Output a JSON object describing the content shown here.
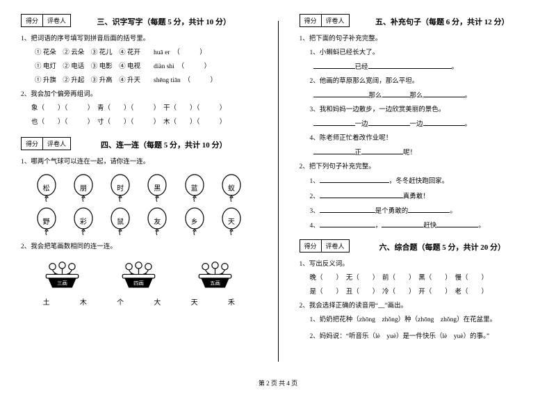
{
  "scorebox": {
    "score": "得分",
    "grader": "评卷人"
  },
  "col1": {
    "sec3": {
      "title": "三、识字写字（每题 5 分，共计 10 分）",
      "q1": "1、把词语的序号填写到拼音后面的括号里。",
      "q1a": "① 花朵　② 云朵　③ 花儿　④ 花开　　huā er　（　　　）",
      "q1b": "① 电灯　② 电话　③ 电影　④ 电视　　diàn shì　（　　　）",
      "q1c": "① 升旗　② 升起　③ 升高　④ 升天　　shēng tiān　（　　　）",
      "q2": "2、我会加个偏旁再组词。",
      "q2a": "象（　　）（　　　）　青（　　）（　　　）　干（　　）（　　　）",
      "q2b": "也（　　）（　　　）　寸（　　）（　　　）　木（　　）（　　　）"
    },
    "sec4": {
      "title": "四、连一连（每题 5 分，共计 10 分）",
      "q1": "1、哪两个气球可以连在一起，请你连一连。",
      "balloons1": [
        "松",
        "朋",
        "时",
        "黑",
        "蓝",
        "蚁"
      ],
      "balloons2": [
        "野",
        "彩",
        "鼠",
        "友",
        "乡",
        "天"
      ],
      "q2": "2、我会把笔画数相同的连一连。",
      "flowers": [
        "三画",
        "四画",
        "五画"
      ],
      "chars": [
        "土",
        "木",
        "个",
        "大",
        "天",
        "禾"
      ]
    }
  },
  "col2": {
    "sec5": {
      "title": "五、补充句子（每题 6 分，共计 12 分）",
      "q1": "1、把下面的句子补充完整。",
      "q1_1": "1、小蝌蚪已经长大了。",
      "q1_1b1": "已经",
      "q1_2": "2、他画的草原那么宽阔，那么平坦。",
      "q1_2b1": "那么",
      "q1_2b2": "那么",
      "q1_3": "3、我和妈妈一边散步，一边欣赏美丽的景色。",
      "q1_3b1": "一边",
      "q1_3b2": "一边",
      "q1_4": "4、陈老师正忙着改作业呢！",
      "q1_4b1": "正",
      "q1_4b2": "呢！",
      "q2": "2、把下列句子补充完整。",
      "q2_1": "1、",
      "q2_1t": "，冬冬赶快跑回家。",
      "q2_2": "2、",
      "q2_2t": "真勇敢！",
      "q2_3": "3、",
      "q2_3t": "是个勇敢的",
      "q2_4": "4、",
      "q2_4t1": "，",
      "q2_4t2": "赶快"
    },
    "sec6": {
      "title": "六、综合题（每题 5 分，共计 20 分）",
      "q1": "1、写出反义词。",
      "q1a": "晚（　　）　无（　　）　前（　　）　黑（　　）　慢（　　）",
      "q1b": "是（　　）　丑（　　）　冷（　　）　开（　　）　老（　　）",
      "q2": "2、我会选择正确的读音用“﹏”画出。",
      "q2_1": "1、奶奶把花种（zhōng　zhǒng）种（zhōng　zhǒng）在花盆里。",
      "q2_2": "2、妈妈说：“听音乐（lè　yuè）是一件快乐（lè　yuè）的事。”"
    }
  },
  "footer": "第 2 页 共 4 页",
  "colors": {
    "text": "#000000",
    "bg": "#ffffff"
  }
}
